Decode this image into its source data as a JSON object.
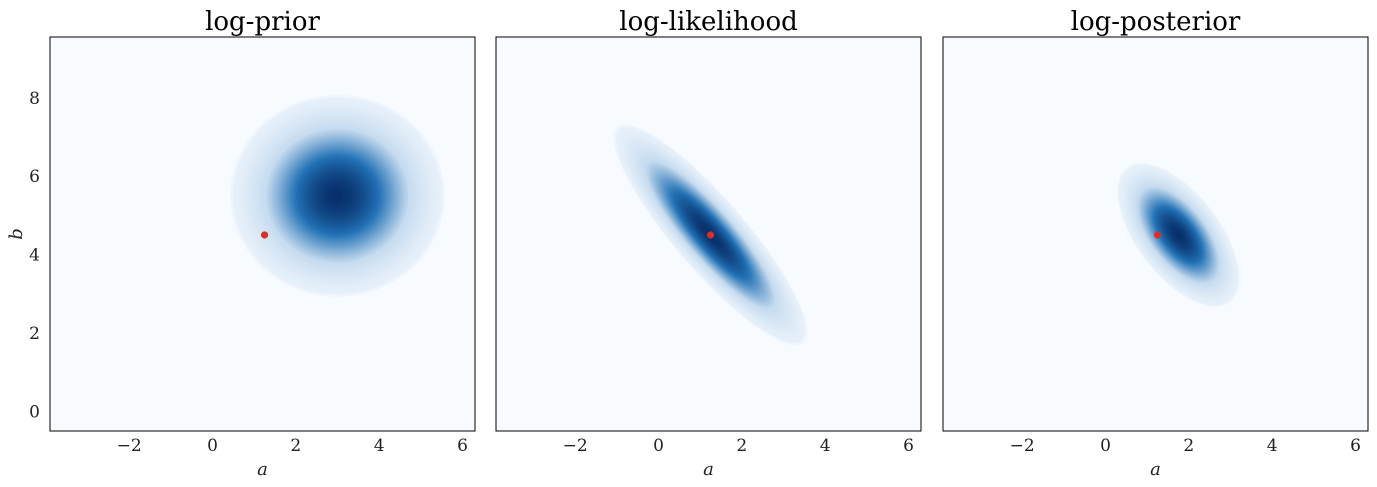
{
  "colors": {
    "background": "#f7fbff",
    "dark": "#08306b",
    "mid": "#2171b5",
    "marker": "#d73027"
  },
  "chart_data": [
    {
      "type": "heatmap",
      "title": "log-prior",
      "xlabel": "a",
      "ylabel": "b",
      "xlim": [
        -3.9,
        6.3
      ],
      "ylim": [
        -0.5,
        9.55
      ],
      "xticks": [
        {
          "value": -2,
          "label": "−2"
        },
        {
          "value": 0,
          "label": "0"
        },
        {
          "value": 2,
          "label": "2"
        },
        {
          "value": 4,
          "label": "4"
        },
        {
          "value": 6,
          "label": "6"
        }
      ],
      "yticks": [
        {
          "value": 0,
          "label": "0"
        },
        {
          "value": 2,
          "label": "2"
        },
        {
          "value": 4,
          "label": "4"
        },
        {
          "value": 6,
          "label": "6"
        },
        {
          "value": 8,
          "label": "8"
        }
      ],
      "density": {
        "center": [
          3.0,
          5.5
        ],
        "sd": [
          1.05,
          1.05
        ],
        "correlation": 0.0
      },
      "marker": {
        "a": 1.25,
        "b": 4.5
      },
      "colormap": "Blues",
      "grid": false
    },
    {
      "type": "heatmap",
      "title": "log-likelihood",
      "xlabel": "a",
      "ylabel": "",
      "xlim": [
        -3.9,
        6.3
      ],
      "ylim": [
        -0.5,
        9.55
      ],
      "xticks": [
        {
          "value": -2,
          "label": "−2"
        },
        {
          "value": 0,
          "label": "0"
        },
        {
          "value": 2,
          "label": "2"
        },
        {
          "value": 4,
          "label": "4"
        },
        {
          "value": 6,
          "label": "6"
        }
      ],
      "yticks": [],
      "density": {
        "center": [
          1.25,
          4.5
        ],
        "sd": [
          0.95,
          1.15
        ],
        "correlation": -0.88
      },
      "marker": {
        "a": 1.25,
        "b": 4.5
      },
      "colormap": "Blues",
      "grid": false
    },
    {
      "type": "heatmap",
      "title": "log-posterior",
      "xlabel": "a",
      "ylabel": "",
      "xlim": [
        -3.9,
        6.3
      ],
      "ylim": [
        -0.5,
        9.55
      ],
      "xticks": [
        {
          "value": -2,
          "label": "−2"
        },
        {
          "value": 0,
          "label": "0"
        },
        {
          "value": 2,
          "label": "2"
        },
        {
          "value": 4,
          "label": "4"
        },
        {
          "value": 6,
          "label": "6"
        }
      ],
      "yticks": [],
      "density": {
        "center": [
          1.75,
          4.5
        ],
        "sd": [
          0.6,
          0.75
        ],
        "correlation": -0.6
      },
      "marker": {
        "a": 1.25,
        "b": 4.5
      },
      "colormap": "Blues",
      "grid": false
    }
  ]
}
